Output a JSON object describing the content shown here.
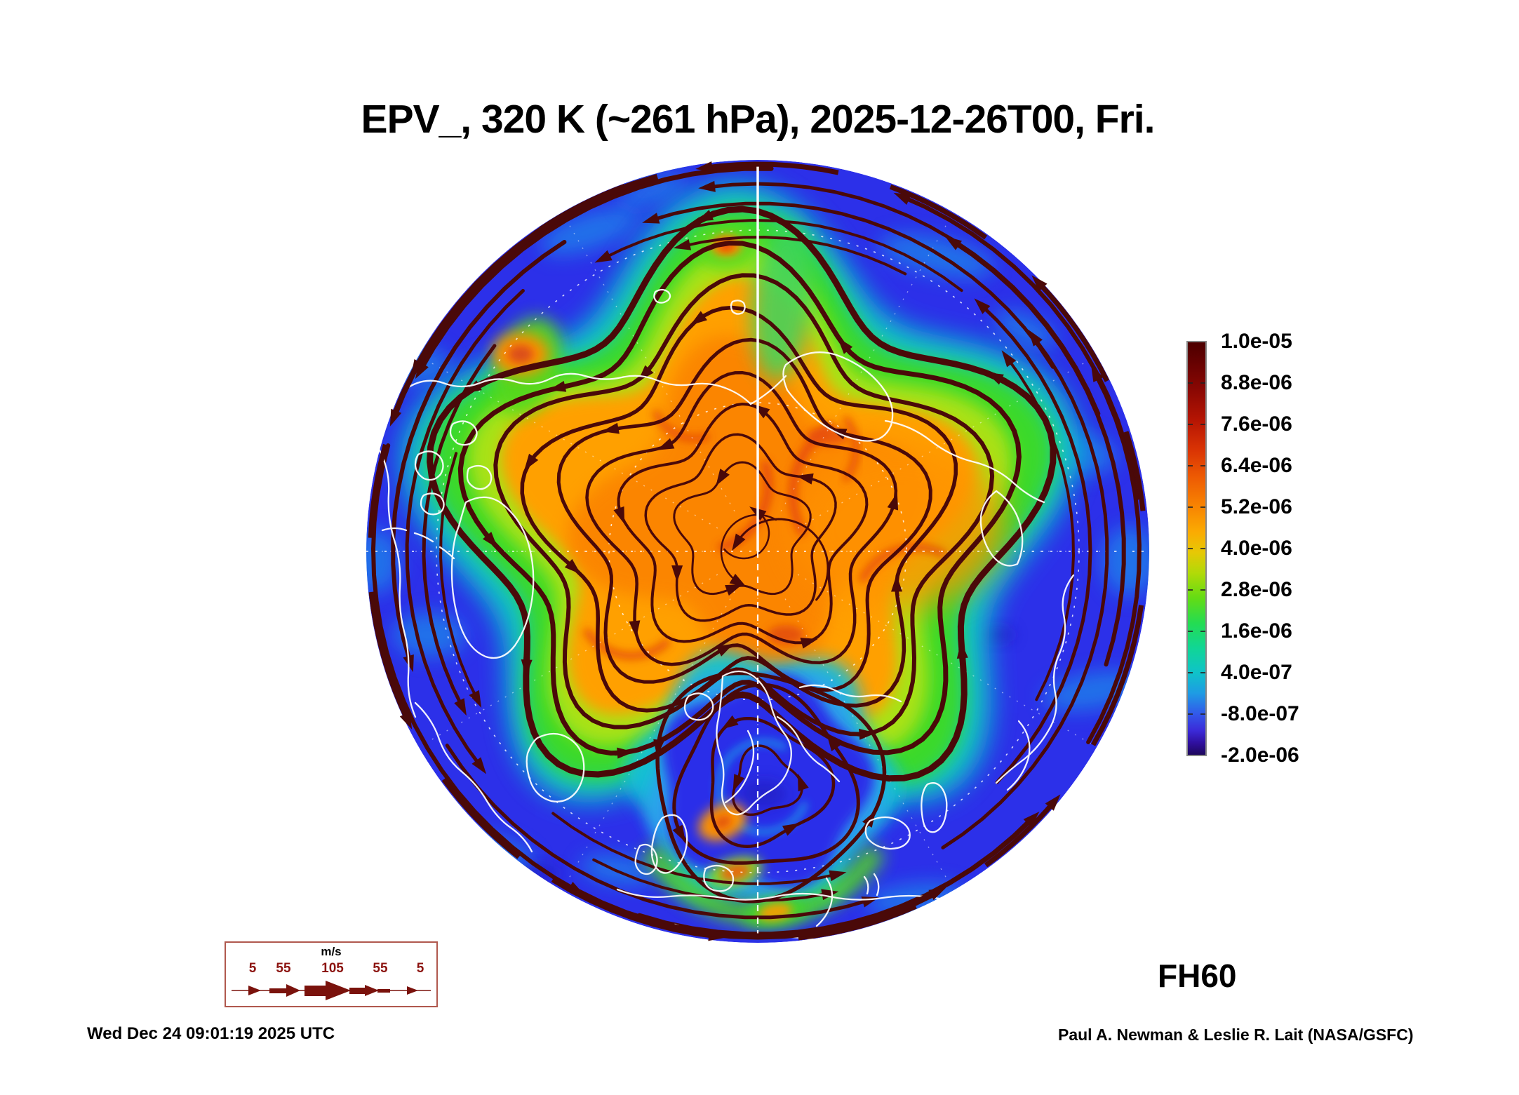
{
  "title": "EPV_, 320 K (~261 hPa), 2025-12-26T00, Fri.",
  "colorbar": {
    "labels": [
      "1.0e-05",
      "8.8e-06",
      "7.6e-06",
      "6.4e-06",
      "5.2e-06",
      "4.0e-06",
      "2.8e-06",
      "1.6e-06",
      "4.0e-07",
      "-8.0e-07",
      "-2.0e-06"
    ],
    "gradient_top_to_bottom": [
      "#4c0000",
      "#660101",
      "#8c0803",
      "#b61503",
      "#d93304",
      "#ee5c03",
      "#f88502",
      "#fbab02",
      "#e6c805",
      "#b0da08",
      "#63dc14",
      "#24dc52",
      "#10d695",
      "#0fc3c9",
      "#1e9be4",
      "#3258ea",
      "#3b2ad8",
      "#2f0f9e",
      "#1d0758"
    ]
  },
  "wind_legend": {
    "units": "m/s",
    "ticks": [
      "5",
      "55",
      "105",
      "55",
      "5"
    ],
    "accent_color": "#8c1410"
  },
  "footer": {
    "generated": "Wed Dec 24 09:01:19 2025 UTC",
    "credit": "Paul A. Newman & Leslie R. Lait (NASA/GSFC)",
    "forecast_hour": "FH60"
  },
  "map_palette": {
    "ocean_low_epv_blue": "#2c30e9",
    "streamline_maroon": "#4a0909",
    "coastline_white": "#ffffff",
    "graticule_white": "#ffffff",
    "high_epv_orange": "#ffa000",
    "mid_epv_green": "#3bd92c",
    "cutoff_low_blue": "#2c2fe9"
  },
  "chart_data": {
    "type": "heatmap",
    "title": "EPV_, 320 K (~261 hPa), 2025-12-26T00, Fri.",
    "variable": "EPV_",
    "level": "320 K (~261 hPa)",
    "valid_time": "2025-12-26T00",
    "valid_day": "Fri.",
    "forecast_hour": "FH60",
    "projection": "Northern Hemisphere polar view (circular map)",
    "colorbar_tick_values": [
      1e-05,
      8.8e-06,
      7.6e-06,
      6.4e-06,
      5.2e-06,
      4e-06,
      2.8e-06,
      1.6e-06,
      4e-07,
      -8e-07,
      -2e-06
    ],
    "wind_speed_scale_ms": [
      5,
      55,
      105,
      55,
      5
    ],
    "overlays": [
      "wind streamlines with arrowheads",
      "white coastlines",
      "dashed latitude/longitude graticule"
    ],
    "features": [
      "high EPV (orange/red) lobed region over the polar cap",
      "low EPV (blue) ring at lower latitudes",
      "cut-off low (blue) over Scandinavia/Baltic",
      "small high-EPV hotspots near Siberia, Bering and western Europe"
    ],
    "generated_timestamp": "Wed Dec 24 09:01:19 2025 UTC",
    "credit": "Paul A. Newman & Leslie R. Lait (NASA/GSFC)"
  }
}
